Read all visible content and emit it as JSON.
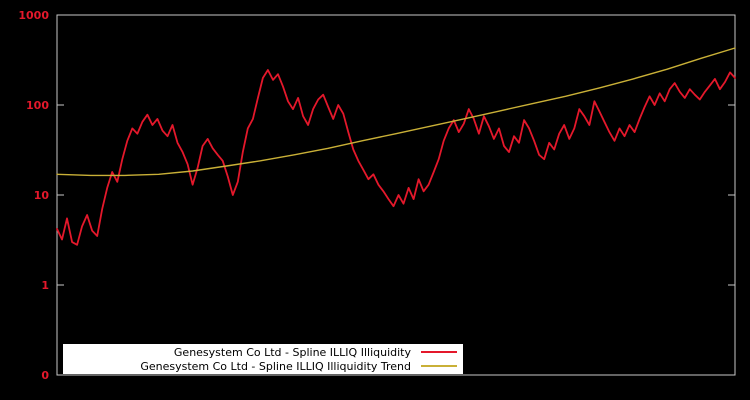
{
  "chart_data": {
    "type": "line",
    "title": "",
    "xlabel": "",
    "ylabel": "",
    "yscale": "log",
    "ylim": [
      0.1,
      1000
    ],
    "background_color": "#000000",
    "border_color": "#c8c8c8",
    "axis_label_color": "#e4182b",
    "grid": false,
    "legend_position": "bottom-center",
    "yticks": [
      {
        "value": 1000,
        "label": "1000"
      },
      {
        "value": 100,
        "label": "100"
      },
      {
        "value": 10,
        "label": "10"
      },
      {
        "value": 1,
        "label": "1"
      },
      {
        "value": 0.1,
        "label": "0"
      }
    ],
    "series": [
      {
        "name": "Genesystem Co Ltd - Spline ILLIQ Illiquidity",
        "color": "#e4182b",
        "width": 1.8,
        "values": [
          4.2,
          3.2,
          5.5,
          3.0,
          2.8,
          4.5,
          6.0,
          4.0,
          3.5,
          7.0,
          12,
          18,
          14,
          25,
          40,
          55,
          48,
          65,
          78,
          60,
          70,
          52,
          45,
          60,
          38,
          30,
          22,
          13,
          20,
          35,
          42,
          33,
          28,
          24,
          16,
          10,
          14,
          30,
          55,
          70,
          120,
          200,
          245,
          190,
          220,
          160,
          110,
          90,
          120,
          75,
          60,
          90,
          115,
          130,
          95,
          70,
          100,
          80,
          50,
          32,
          24,
          19,
          15,
          17,
          13,
          11,
          9,
          7.5,
          10,
          8,
          12,
          9,
          15,
          11,
          13,
          18,
          25,
          40,
          55,
          68,
          50,
          62,
          90,
          70,
          48,
          75,
          58,
          42,
          55,
          35,
          30,
          45,
          38,
          68,
          55,
          40,
          28,
          25,
          38,
          32,
          48,
          60,
          42,
          55,
          90,
          75,
          60,
          110,
          85,
          65,
          50,
          40,
          55,
          45,
          60,
          50,
          70,
          95,
          125,
          100,
          135,
          110,
          150,
          175,
          140,
          120,
          150,
          130,
          115,
          140,
          165,
          195,
          150,
          180,
          230,
          200
        ]
      },
      {
        "name": "Genesystem Co Ltd - Spline ILLIQ Illiquidity Trend",
        "color": "#c9b037",
        "width": 1.4,
        "values": [
          17,
          16.5,
          16.5,
          17,
          18.5,
          21,
          24,
          28,
          33,
          40,
          48,
          58,
          70,
          85,
          103,
          125,
          155,
          195,
          250,
          330,
          430
        ]
      }
    ]
  },
  "legend": {
    "items": [
      {
        "label": "Genesystem Co Ltd - Spline ILLIQ Illiquidity"
      },
      {
        "label": "Genesystem Co Ltd - Spline ILLIQ Illiquidity Trend"
      }
    ]
  }
}
